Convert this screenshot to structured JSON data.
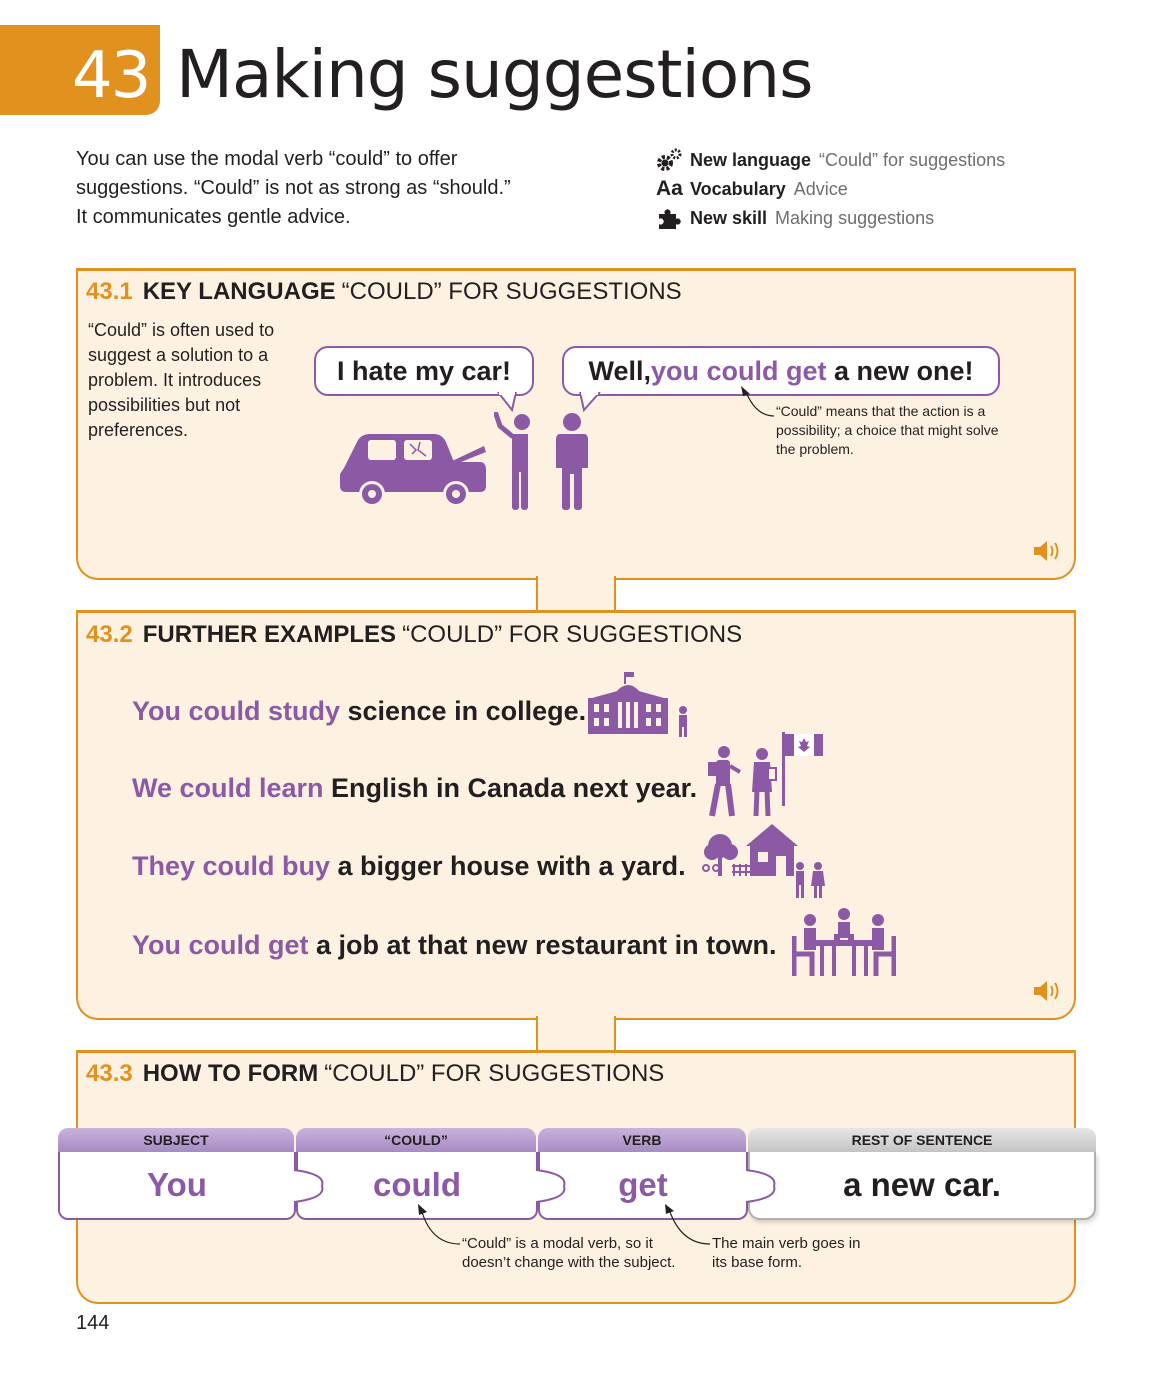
{
  "header": {
    "unit_number": "43",
    "title": "Making suggestions"
  },
  "intro": "You can use the modal verb “could” to offer suggestions. “Could” is not as strong as “should.” It communicates gentle advice.",
  "meta": [
    {
      "icon": "gears-icon",
      "label": "New language",
      "value": "“Could” for suggestions"
    },
    {
      "icon": "aa-icon",
      "label": "Vocabulary",
      "value": "Advice"
    },
    {
      "icon": "puzzle-icon",
      "label": "New skill",
      "value": "Making suggestions"
    }
  ],
  "sections": {
    "s1": {
      "number": "43.1",
      "keyword": "KEY LANGUAGE",
      "rest": "“COULD” FOR SUGGESTIONS",
      "description": "“Could” is often used to suggest a solution to a problem. It introduces possibilities but not preferences.",
      "bubble_left": "I hate my car!",
      "bubble_right": {
        "pre": "Well, ",
        "highlight": "you could get",
        "post": " a new one!"
      },
      "note": "“Could” means that the action is a possibility; a choice that might solve the problem."
    },
    "s2": {
      "number": "43.2",
      "keyword": "FURTHER EXAMPLES",
      "rest": "“COULD” FOR SUGGESTIONS",
      "examples": [
        {
          "highlight": "You could study",
          "rest": " science in college.",
          "icon": "college-icon"
        },
        {
          "highlight": "We could learn",
          "rest": " English in Canada next year.",
          "icon": "canada-flag-icon"
        },
        {
          "highlight": "They could buy",
          "rest": " a bigger house with a yard.",
          "icon": "house-icon"
        },
        {
          "highlight": "You could get",
          "rest": " a job at that new restaurant in town.",
          "icon": "restaurant-icon"
        }
      ]
    },
    "s3": {
      "number": "43.3",
      "keyword": "HOW TO FORM",
      "rest": "“COULD” FOR SUGGESTIONS",
      "columns": [
        {
          "head": "SUBJECT",
          "value": "You"
        },
        {
          "head": "“COULD”",
          "value": "could"
        },
        {
          "head": "VERB",
          "value": "get"
        },
        {
          "head": "REST OF SENTENCE",
          "value": "a new car."
        }
      ],
      "note_could": "“Could” is a modal verb, so it doesn’t change with the subject.",
      "note_verb": "The main verb goes in its base form."
    }
  },
  "page_number": "144",
  "colors": {
    "accent": "#e0911e",
    "purple": "#8c5aa5",
    "panel_bg": "#fdf2e2"
  }
}
